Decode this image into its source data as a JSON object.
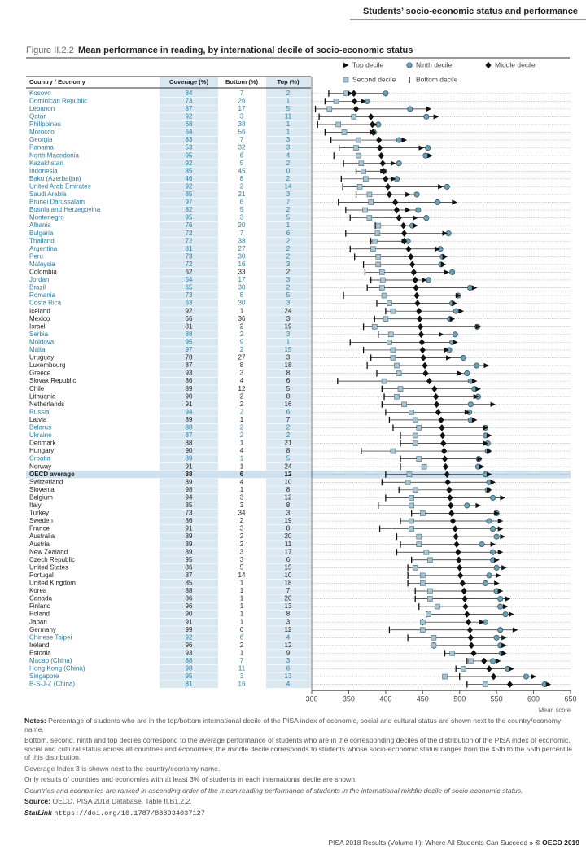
{
  "header": {
    "section_title": "Students’ socio-economic status and performance"
  },
  "figure": {
    "label": "Figure II.2.2",
    "title": "Mean performance in reading, by international decile of socio-economic status"
  },
  "table": {
    "columns": [
      "Country / Economy",
      "Coverage (%)",
      "Bottom (%)",
      "Top (%)"
    ],
    "partner_color": "#2b7ea1",
    "highlight_row": 49,
    "partner": [
      true,
      true,
      true,
      true,
      true,
      true,
      true,
      true,
      true,
      true,
      true,
      true,
      true,
      true,
      true,
      true,
      true,
      true,
      true,
      true,
      true,
      true,
      true,
      false,
      true,
      true,
      true,
      true,
      false,
      false,
      false,
      true,
      true,
      true,
      false,
      false,
      false,
      false,
      false,
      false,
      false,
      true,
      false,
      true,
      true,
      false,
      false,
      true,
      false,
      false,
      false,
      false,
      false,
      false,
      false,
      false,
      false,
      false,
      false,
      false,
      false,
      false,
      false,
      false,
      false,
      false,
      false,
      false,
      false,
      false,
      true,
      false,
      false,
      true,
      true,
      true,
      true
    ],
    "rows": [
      [
        84,
        7,
        2
      ],
      [
        73,
        26,
        1
      ],
      [
        87,
        17,
        5
      ],
      [
        92,
        3,
        11
      ],
      [
        68,
        38,
        1
      ],
      [
        64,
        56,
        1
      ],
      [
        83,
        7,
        3
      ],
      [
        53,
        32,
        3
      ],
      [
        95,
        6,
        4
      ],
      [
        92,
        5,
        2
      ],
      [
        85,
        45,
        0
      ],
      [
        46,
        8,
        2
      ],
      [
        92,
        2,
        14
      ],
      [
        85,
        21,
        3
      ],
      [
        97,
        6,
        7
      ],
      [
        82,
        5,
        2
      ],
      [
        95,
        3,
        5
      ],
      [
        76,
        20,
        1
      ],
      [
        72,
        7,
        6
      ],
      [
        72,
        38,
        2
      ],
      [
        81,
        27,
        2
      ],
      [
        73,
        30,
        2
      ],
      [
        72,
        16,
        3
      ],
      [
        62,
        33,
        2
      ],
      [
        54,
        17,
        3
      ],
      [
        65,
        30,
        2
      ],
      [
        73,
        8,
        5
      ],
      [
        63,
        30,
        3
      ],
      [
        92,
        1,
        24
      ],
      [
        66,
        36,
        3
      ],
      [
        81,
        2,
        19
      ],
      [
        88,
        2,
        3
      ],
      [
        95,
        9,
        1
      ],
      [
        97,
        2,
        15
      ],
      [
        78,
        27,
        3
      ],
      [
        87,
        8,
        18
      ],
      [
        93,
        3,
        8
      ],
      [
        86,
        4,
        6
      ],
      [
        89,
        12,
        5
      ],
      [
        90,
        2,
        8
      ],
      [
        91,
        2,
        16
      ],
      [
        94,
        2,
        6
      ],
      [
        89,
        1,
        7
      ],
      [
        88,
        2,
        2
      ],
      [
        87,
        2,
        2
      ],
      [
        88,
        1,
        21
      ],
      [
        90,
        4,
        8
      ],
      [
        89,
        1,
        5
      ],
      [
        91,
        1,
        24
      ],
      [
        88,
        6,
        12
      ],
      [
        89,
        4,
        10
      ],
      [
        98,
        1,
        8
      ],
      [
        94,
        3,
        12
      ],
      [
        85,
        3,
        8
      ],
      [
        73,
        34,
        3
      ],
      [
        86,
        2,
        19
      ],
      [
        91,
        3,
        8
      ],
      [
        89,
        2,
        20
      ],
      [
        89,
        2,
        11
      ],
      [
        89,
        3,
        17
      ],
      [
        95,
        3,
        6
      ],
      [
        86,
        5,
        15
      ],
      [
        87,
        14,
        10
      ],
      [
        85,
        1,
        18
      ],
      [
        88,
        1,
        7
      ],
      [
        86,
        1,
        20
      ],
      [
        96,
        1,
        13
      ],
      [
        90,
        1,
        8
      ],
      [
        91,
        1,
        3
      ],
      [
        99,
        6,
        12
      ],
      [
        92,
        6,
        4
      ],
      [
        96,
        2,
        12
      ],
      [
        93,
        1,
        9
      ],
      [
        88,
        7,
        3
      ],
      [
        98,
        11,
        6
      ],
      [
        95,
        3,
        13
      ],
      [
        81,
        16,
        4
      ]
    ]
  },
  "chart_data": {
    "type": "dot",
    "xlabel": "Mean score",
    "xlim": [
      300,
      650
    ],
    "xticks": [
      300,
      350,
      400,
      450,
      500,
      550,
      600,
      650
    ],
    "categories": [
      "Kosovo",
      "Dominican Republic",
      "Lebanon",
      "Qatar",
      "Philippines",
      "Morocco",
      "Georgia",
      "Panama",
      "North Macedonia",
      "Kazakhstan",
      "Indonesia",
      "Baku (Azerbaijan)",
      "United Arab Emirates",
      "Saudi Arabia",
      "Brunei Darussalam",
      "Bosnia and Herzegovina",
      "Montenegro",
      "Albania",
      "Bulgaria",
      "Thailand",
      "Argentina",
      "Peru",
      "Malaysia",
      "Colombia",
      "Jordan",
      "Brazil",
      "Romania",
      "Costa Rica",
      "Iceland",
      "Mexico",
      "Israel",
      "Serbia",
      "Moldova",
      "Malta",
      "Uruguay",
      "Luxembourg",
      "Greece",
      "Slovak Republic",
      "Chile",
      "Lithuania",
      "Netherlands",
      "Russia",
      "Latvia",
      "Belarus",
      "Ukraine",
      "Denmark",
      "Hungary",
      "Croatia",
      "Norway",
      "OECD average",
      "Switzerland",
      "Slovenia",
      "Belgium",
      "Italy",
      "Turkey",
      "Sweden",
      "France",
      "Australia",
      "Austria",
      "New Zealand",
      "Czech Republic",
      "United States",
      "Portugal",
      "United Kingdom",
      "Korea",
      "Canada",
      "Finland",
      "Poland",
      "Japan",
      "Germany",
      "Chinese Taipei",
      "Ireland",
      "Estonia",
      "Macao (China)",
      "Hong Kong (China)",
      "Singapore",
      "B-S-J-Z (China)"
    ],
    "series": [
      {
        "name": "Top decile",
        "marker": "triangle",
        "color": "#111111",
        "values": [
          352,
          370,
          458,
          468,
          385,
          382,
          425,
          448,
          460,
          410,
          396,
          410,
          474,
          430,
          493,
          430,
          440,
          440,
          480,
          425,
          470,
          480,
          478,
          482,
          452,
          520,
          498,
          493,
          502,
          490,
          525,
          475,
          494,
          482,
          485,
          536,
          500,
          520,
          525,
          522,
          545,
          510,
          520,
          535,
          540,
          535,
          540,
          527,
          530,
          540,
          545,
          540,
          558,
          525,
          550,
          555,
          555,
          558,
          545,
          555,
          550,
          560,
          552,
          550,
          555,
          565,
          562,
          570,
          530,
          575,
          560,
          560,
          560,
          552,
          570,
          600,
          620
        ]
      },
      {
        "name": "Ninth decile",
        "marker": "circle",
        "color": "#6f9fb3",
        "values": [
          400,
          375,
          433,
          455,
          390,
          384,
          418,
          457,
          454,
          418,
          398,
          415,
          483,
          442,
          470,
          444,
          455,
          436,
          485,
          430,
          474,
          477,
          475,
          490,
          458,
          514,
          498,
          490,
          495,
          487,
          524,
          494,
          490,
          486,
          505,
          523,
          510,
          515,
          520,
          525,
          515,
          513,
          515,
          535,
          535,
          538,
          538,
          526,
          525,
          535,
          540,
          538,
          545,
          510,
          550,
          540,
          545,
          550,
          530,
          545,
          545,
          550,
          540,
          535,
          550,
          555,
          555,
          562,
          535,
          555,
          550,
          555,
          557,
          545,
          565,
          590,
          615
        ]
      },
      {
        "name": "Middle decile",
        "marker": "diamond",
        "color": "#111111",
        "values": [
          357,
          358,
          360,
          380,
          382,
          383,
          391,
          392,
          394,
          396,
          397,
          400,
          403,
          405,
          413,
          415,
          418,
          424,
          425,
          425,
          431,
          434,
          436,
          438,
          440,
          441,
          442,
          443,
          445,
          446,
          447,
          448,
          449,
          450,
          451,
          453,
          454,
          459,
          466,
          468,
          469,
          471,
          475,
          476,
          477,
          478,
          479,
          480,
          481,
          483,
          484,
          486,
          487,
          488,
          489,
          491,
          494,
          495,
          496,
          498,
          499,
          500,
          501,
          504,
          506,
          507,
          508,
          510,
          512,
          514,
          515,
          516,
          519,
          533,
          540,
          546,
          568
        ]
      },
      {
        "name": "Second decile",
        "marker": "square",
        "color": "#a8c3d1",
        "values": [
          347,
          333,
          324,
          357,
          336,
          344,
          363,
          360,
          363,
          367,
          370,
          373,
          365,
          378,
          380,
          372,
          378,
          390,
          389,
          385,
          383,
          390,
          390,
          395,
          396,
          395,
          398,
          405,
          410,
          400,
          385,
          407,
          405,
          410,
          410,
          415,
          418,
          398,
          420,
          415,
          425,
          435,
          440,
          445,
          440,
          440,
          410,
          445,
          452,
          432,
          430,
          440,
          435,
          435,
          450,
          435,
          435,
          445,
          445,
          455,
          460,
          440,
          450,
          450,
          460,
          460,
          470,
          458,
          450,
          450,
          465,
          465,
          490,
          515,
          505,
          480,
          535
        ]
      },
      {
        "name": "Bottom decile",
        "marker": "bar",
        "color": "#111111",
        "values": [
          323,
          318,
          305,
          310,
          308,
          318,
          326,
          337,
          330,
          343,
          360,
          340,
          342,
          360,
          336,
          346,
          352,
          386,
          346,
          380,
          352,
          358,
          370,
          372,
          380,
          375,
          343,
          388,
          400,
          385,
          370,
          390,
          352,
          370,
          380,
          375,
          388,
          335,
          395,
          398,
          395,
          400,
          405,
          410,
          420,
          420,
          367,
          420,
          420,
          400,
          395,
          418,
          400,
          390,
          435,
          420,
          392,
          415,
          420,
          415,
          435,
          430,
          430,
          430,
          440,
          440,
          445,
          455,
          450,
          405,
          430,
          465,
          480,
          510,
          495,
          500,
          510
        ]
      }
    ]
  },
  "notes": {
    "label": "Notes:",
    "paragraphs": [
      "Percentage of students who are in the top/bottom international decile of the PISA index of economic, social and cultural status are shown next to the country/economy name.",
      "Bottom, second, ninth and top deciles correspond to the average performance of students who are in the corresponding deciles of the distribution of the PISA index of economic, social and cultural status across all countries and economies; the middle decile corresponds to students whose socio-economic status ranges from the 45th to the 55th percentile of this distribution.",
      "Coverage Index 3 is shown next to the country/economy name.",
      "Only results of countries and economies with at least 3% of students in each international decile are shown."
    ],
    "italic": "Countries and economies are ranked in ascending order of the mean reading performance of students in the international middle decile of socio-economic status.",
    "source_label": "Source:",
    "source": "OECD, PISA 2018 Database, Table II.B1.2.2.",
    "statlink_label": "StatLink",
    "statlink": "https://doi.org/10.1787/888934037127"
  },
  "footer": {
    "text": "PISA 2018 Results (Volume II): Where All Students Can Succeed",
    "copyright": "» © OECD 2019"
  }
}
